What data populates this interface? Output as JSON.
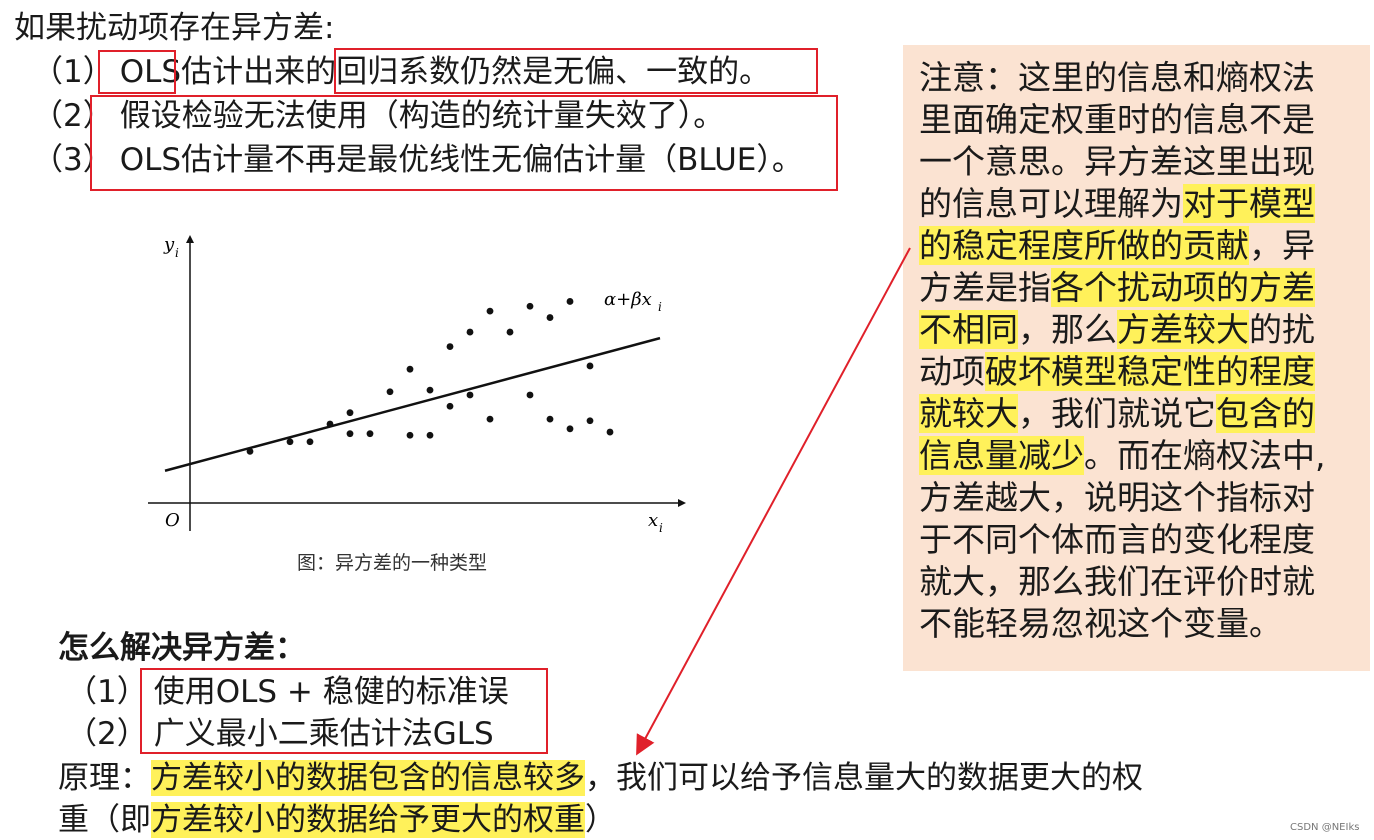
{
  "intro": "如果扰动项存在异方差:",
  "consequences": [
    {
      "num": "（1）",
      "a": "OLS",
      "b": "估计出来的",
      "c": "回归系数仍然是无偏、一致的",
      "d": "。"
    },
    {
      "num": "（2）",
      "a": "假设检验无法使用（构造的统计量失效了）",
      "d": "。"
    },
    {
      "num": "（3）",
      "a": "OLS估计量不再是最优线性无偏估计量（BLUE）",
      "d": "。"
    }
  ],
  "figure": {
    "caption": "图：异方差的一种类型",
    "y_label": "y",
    "y_sub": "i",
    "x_label": "x",
    "x_sub": "i",
    "origin": "O",
    "line_label": "α+βx",
    "line_sub": "i"
  },
  "chart_data": {
    "type": "scatter",
    "x": [
      3,
      5,
      6,
      7,
      8,
      8,
      9,
      10,
      11,
      11,
      12,
      12,
      13,
      13,
      14,
      14,
      15,
      15,
      16,
      17,
      17,
      18,
      18,
      19,
      19,
      20,
      20,
      21
    ],
    "y": [
      1.2,
      1.8,
      1.8,
      2.9,
      3.6,
      2.3,
      2.3,
      4.9,
      2.2,
      6.3,
      2.2,
      5.0,
      7.7,
      4.0,
      8.6,
      4.7,
      9.9,
      3.2,
      8.6,
      4.7,
      10.2,
      3.2,
      9.5,
      2.6,
      10.5,
      3.1,
      6.5,
      2.4
    ],
    "line": {
      "intercept": 0,
      "slope": 0.35
    },
    "xlim": [
      0,
      24
    ],
    "ylim": [
      -2,
      14
    ]
  },
  "solutions": {
    "title": "怎么解决异方差：",
    "items": [
      {
        "num": "（1）",
        "text": "使用OLS + 稳健的标准误"
      },
      {
        "num": "（2）",
        "text": "广义最小二乘估计法GLS"
      }
    ]
  },
  "principle": {
    "label": "原理：",
    "hl1": "方差较小的数据包含的信息较多",
    "mid": "，我们可以给予信息量大的数据更大的权",
    "line2_start": "重（即",
    "hl2": "方差较小的数据给予更大的权重",
    "line2_end": "）"
  },
  "note": {
    "l1": "注意：这里的信息和熵权法",
    "l2": "里面确定权重时的信息不是",
    "l3": "一个意思。异方差这里出现",
    "l4a": "的信息可以理解为",
    "l4h": "对于模型",
    "l5h": "的稳定程度所做的贡献",
    "l5b": "，异",
    "l6a": "方差是指",
    "l6h": "各个扰动项的方差",
    "l7h": "不相同",
    "l7b": "，那么",
    "l7h2": "方差较大",
    "l7c": "的扰",
    "l8a": "动项",
    "l8h": "破坏模型稳定性的程度",
    "l9h": "就较大",
    "l9b": "，我们就说它",
    "l9h2": "包含的",
    "l10h": "信息量减少",
    "l10b": "。而在熵权法中,",
    "l11": "方差越大，说明这个指标对",
    "l12": "于不同个体而言的变化程度",
    "l13": "就大，那么我们在评价时就",
    "l14": "不能轻易忽视这个变量。"
  },
  "watermark": "CSDN @NEIks",
  "colors": {
    "box": "#e0202a",
    "highlight": "#fff15a",
    "note_bg": "#fbe3d2",
    "arrow": "#e0202a"
  }
}
